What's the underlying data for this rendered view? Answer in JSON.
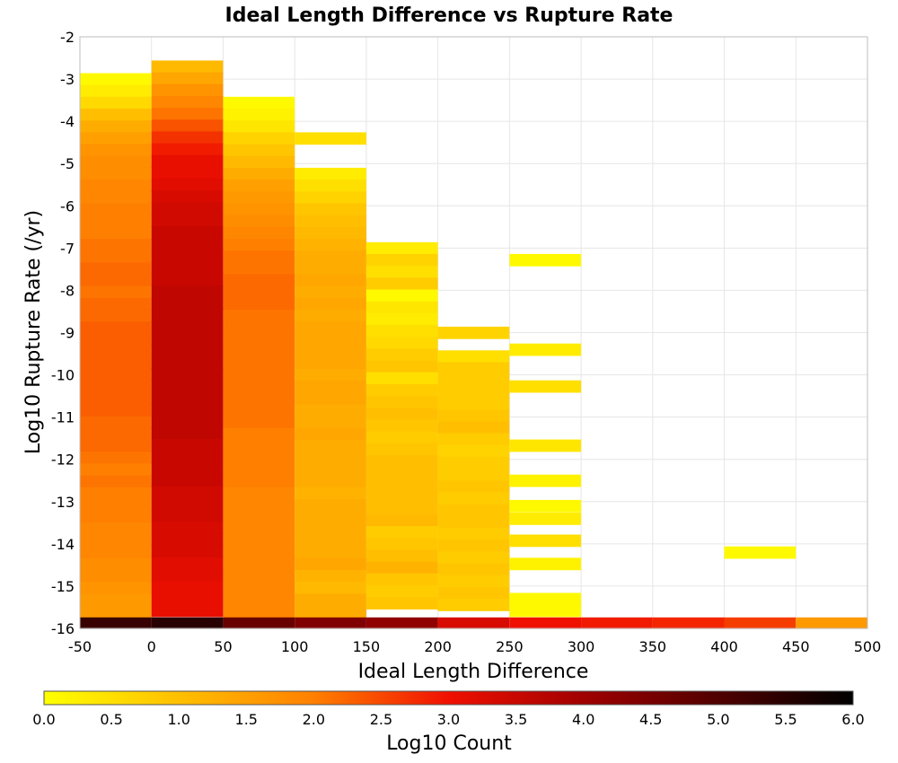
{
  "chart_data": {
    "type": "heatmap",
    "title": "Ideal Length Difference vs Rupture Rate",
    "xlabel": "Ideal Length Difference",
    "ylabel": "Log10 Rupture Rate (/yr)",
    "xlim": [
      -50,
      500
    ],
    "ylim": [
      -16,
      -2
    ],
    "x_ticks": [
      "-50",
      "0",
      "50",
      "100",
      "150",
      "200",
      "250",
      "300",
      "350",
      "400",
      "450",
      "500"
    ],
    "y_ticks": [
      "-2",
      "-3",
      "-4",
      "-5",
      "-6",
      "-7",
      "-8",
      "-9",
      "-10",
      "-11",
      "-12",
      "-13",
      "-14",
      "-15",
      "-16"
    ],
    "grid": true,
    "x_bin_width": 50,
    "y_bin_height": 0.28,
    "colorbar": {
      "label": "Log10 Count",
      "range": [
        0,
        6
      ],
      "ticks": [
        "0.0",
        "0.5",
        "1.0",
        "1.5",
        "2.0",
        "2.5",
        "3.0",
        "3.5",
        "4.0",
        "4.5",
        "5.0",
        "5.5",
        "6.0"
      ],
      "colormap": "hot (reversed: 0 = yellow, 6 = black)",
      "position": "bottom"
    },
    "columns": [
      {
        "x_start": -50,
        "cells": [
          {
            "y": -3.0,
            "v": 0.1
          },
          {
            "y": -3.28,
            "v": 0.3
          },
          {
            "y": -3.56,
            "v": 0.6
          },
          {
            "y": -3.84,
            "v": 1.0
          },
          {
            "y": -4.12,
            "v": 1.3
          },
          {
            "y": -4.4,
            "v": 1.5
          },
          {
            "y": -4.68,
            "v": 1.7
          },
          {
            "y": -4.96,
            "v": 1.8
          },
          {
            "y": -5.24,
            "v": 1.8
          },
          {
            "y": -5.52,
            "v": 1.9
          },
          {
            "y": -5.8,
            "v": 1.9
          },
          {
            "y": -6.08,
            "v": 2.0
          },
          {
            "y": -6.36,
            "v": 2.0
          },
          {
            "y": -6.64,
            "v": 2.0
          },
          {
            "y": -6.92,
            "v": 2.1
          },
          {
            "y": -7.2,
            "v": 2.1
          },
          {
            "y": -7.48,
            "v": 2.2
          },
          {
            "y": -7.76,
            "v": 2.2
          },
          {
            "y": -8.04,
            "v": 2.1
          },
          {
            "y": -8.32,
            "v": 2.2
          },
          {
            "y": -8.6,
            "v": 2.2
          },
          {
            "y": -8.88,
            "v": 2.3
          },
          {
            "y": -9.16,
            "v": 2.3
          },
          {
            "y": -9.44,
            "v": 2.3
          },
          {
            "y": -9.72,
            "v": 2.3
          },
          {
            "y": -10.0,
            "v": 2.3
          },
          {
            "y": -10.28,
            "v": 2.3
          },
          {
            "y": -10.56,
            "v": 2.3
          },
          {
            "y": -10.84,
            "v": 2.3
          },
          {
            "y": -11.12,
            "v": 2.2
          },
          {
            "y": -11.4,
            "v": 2.2
          },
          {
            "y": -11.68,
            "v": 2.2
          },
          {
            "y": -11.96,
            "v": 2.1
          },
          {
            "y": -12.24,
            "v": 2.0
          },
          {
            "y": -12.52,
            "v": 2.1
          },
          {
            "y": -12.8,
            "v": 2.0
          },
          {
            "y": -13.08,
            "v": 2.0
          },
          {
            "y": -13.36,
            "v": 2.0
          },
          {
            "y": -13.64,
            "v": 1.9
          },
          {
            "y": -13.92,
            "v": 1.9
          },
          {
            "y": -14.2,
            "v": 1.9
          },
          {
            "y": -14.48,
            "v": 1.8
          },
          {
            "y": -14.76,
            "v": 1.8
          },
          {
            "y": -15.04,
            "v": 1.7
          },
          {
            "y": -15.32,
            "v": 1.6
          },
          {
            "y": -15.6,
            "v": 1.6
          },
          {
            "y": -15.88,
            "v": 5.3
          }
        ]
      },
      {
        "x_start": 0,
        "cells": [
          {
            "y": -2.7,
            "v": 1.1
          },
          {
            "y": -2.98,
            "v": 1.4
          },
          {
            "y": -3.26,
            "v": 1.7
          },
          {
            "y": -3.54,
            "v": 1.9
          },
          {
            "y": -3.82,
            "v": 2.1
          },
          {
            "y": -4.1,
            "v": 2.4
          },
          {
            "y": -4.38,
            "v": 2.7
          },
          {
            "y": -4.66,
            "v": 2.9
          },
          {
            "y": -4.94,
            "v": 3.1
          },
          {
            "y": -5.22,
            "v": 3.1
          },
          {
            "y": -5.5,
            "v": 3.2
          },
          {
            "y": -5.78,
            "v": 3.3
          },
          {
            "y": -6.06,
            "v": 3.4
          },
          {
            "y": -6.34,
            "v": 3.4
          },
          {
            "y": -6.62,
            "v": 3.5
          },
          {
            "y": -6.9,
            "v": 3.5
          },
          {
            "y": -7.18,
            "v": 3.5
          },
          {
            "y": -7.46,
            "v": 3.5
          },
          {
            "y": -7.74,
            "v": 3.5
          },
          {
            "y": -8.02,
            "v": 3.6
          },
          {
            "y": -8.3,
            "v": 3.6
          },
          {
            "y": -8.58,
            "v": 3.6
          },
          {
            "y": -8.86,
            "v": 3.6
          },
          {
            "y": -9.14,
            "v": 3.6
          },
          {
            "y": -9.42,
            "v": 3.6
          },
          {
            "y": -9.7,
            "v": 3.6
          },
          {
            "y": -9.98,
            "v": 3.6
          },
          {
            "y": -10.26,
            "v": 3.6
          },
          {
            "y": -10.54,
            "v": 3.6
          },
          {
            "y": -10.82,
            "v": 3.6
          },
          {
            "y": -11.1,
            "v": 3.6
          },
          {
            "y": -11.38,
            "v": 3.6
          },
          {
            "y": -11.66,
            "v": 3.5
          },
          {
            "y": -11.94,
            "v": 3.5
          },
          {
            "y": -12.22,
            "v": 3.5
          },
          {
            "y": -12.5,
            "v": 3.5
          },
          {
            "y": -12.78,
            "v": 3.4
          },
          {
            "y": -13.06,
            "v": 3.4
          },
          {
            "y": -13.34,
            "v": 3.4
          },
          {
            "y": -13.62,
            "v": 3.3
          },
          {
            "y": -13.9,
            "v": 3.3
          },
          {
            "y": -14.18,
            "v": 3.3
          },
          {
            "y": -14.46,
            "v": 3.2
          },
          {
            "y": -14.74,
            "v": 3.2
          },
          {
            "y": -15.02,
            "v": 3.1
          },
          {
            "y": -15.3,
            "v": 3.1
          },
          {
            "y": -15.58,
            "v": 3.1
          },
          {
            "y": -15.88,
            "v": 5.5
          }
        ]
      },
      {
        "x_start": 50,
        "cells": [
          {
            "y": -3.56,
            "v": 0.1
          },
          {
            "y": -3.84,
            "v": 0.2
          },
          {
            "y": -4.12,
            "v": 0.4
          },
          {
            "y": -4.4,
            "v": 0.7
          },
          {
            "y": -4.68,
            "v": 0.9
          },
          {
            "y": -4.96,
            "v": 1.1
          },
          {
            "y": -5.24,
            "v": 1.3
          },
          {
            "y": -5.52,
            "v": 1.5
          },
          {
            "y": -5.8,
            "v": 1.6
          },
          {
            "y": -6.08,
            "v": 1.7
          },
          {
            "y": -6.36,
            "v": 1.8
          },
          {
            "y": -6.64,
            "v": 1.9
          },
          {
            "y": -6.92,
            "v": 2.0
          },
          {
            "y": -7.2,
            "v": 2.1
          },
          {
            "y": -7.48,
            "v": 2.1
          },
          {
            "y": -7.76,
            "v": 2.2
          },
          {
            "y": -8.04,
            "v": 2.2
          },
          {
            "y": -8.32,
            "v": 2.2
          },
          {
            "y": -8.6,
            "v": 2.1
          },
          {
            "y": -8.88,
            "v": 2.1
          },
          {
            "y": -9.16,
            "v": 2.1
          },
          {
            "y": -9.44,
            "v": 2.1
          },
          {
            "y": -9.72,
            "v": 2.1
          },
          {
            "y": -10.0,
            "v": 2.1
          },
          {
            "y": -10.28,
            "v": 2.1
          },
          {
            "y": -10.56,
            "v": 2.1
          },
          {
            "y": -10.84,
            "v": 2.1
          },
          {
            "y": -11.12,
            "v": 2.1
          },
          {
            "y": -11.4,
            "v": 2.0
          },
          {
            "y": -11.68,
            "v": 2.0
          },
          {
            "y": -11.96,
            "v": 2.0
          },
          {
            "y": -12.24,
            "v": 2.0
          },
          {
            "y": -12.52,
            "v": 2.0
          },
          {
            "y": -12.8,
            "v": 1.9
          },
          {
            "y": -13.08,
            "v": 1.9
          },
          {
            "y": -13.36,
            "v": 1.9
          },
          {
            "y": -13.64,
            "v": 1.9
          },
          {
            "y": -13.92,
            "v": 1.9
          },
          {
            "y": -14.2,
            "v": 1.9
          },
          {
            "y": -14.48,
            "v": 1.9
          },
          {
            "y": -14.76,
            "v": 1.9
          },
          {
            "y": -15.04,
            "v": 1.9
          },
          {
            "y": -15.32,
            "v": 1.9
          },
          {
            "y": -15.6,
            "v": 1.9
          },
          {
            "y": -15.88,
            "v": 4.7
          }
        ]
      },
      {
        "x_start": 100,
        "cells": [
          {
            "y": -4.4,
            "v": 0.5
          },
          {
            "y": -5.24,
            "v": 0.3
          },
          {
            "y": -5.52,
            "v": 0.5
          },
          {
            "y": -5.8,
            "v": 0.7
          },
          {
            "y": -6.08,
            "v": 0.9
          },
          {
            "y": -6.36,
            "v": 1.0
          },
          {
            "y": -6.64,
            "v": 1.1
          },
          {
            "y": -6.92,
            "v": 1.2
          },
          {
            "y": -7.2,
            "v": 1.3
          },
          {
            "y": -7.48,
            "v": 1.3
          },
          {
            "y": -7.76,
            "v": 1.4
          },
          {
            "y": -8.04,
            "v": 1.3
          },
          {
            "y": -8.32,
            "v": 1.4
          },
          {
            "y": -8.6,
            "v": 1.3
          },
          {
            "y": -8.88,
            "v": 1.4
          },
          {
            "y": -9.16,
            "v": 1.4
          },
          {
            "y": -9.44,
            "v": 1.4
          },
          {
            "y": -9.72,
            "v": 1.4
          },
          {
            "y": -10.0,
            "v": 1.3
          },
          {
            "y": -10.28,
            "v": 1.4
          },
          {
            "y": -10.56,
            "v": 1.4
          },
          {
            "y": -10.84,
            "v": 1.3
          },
          {
            "y": -11.12,
            "v": 1.3
          },
          {
            "y": -11.4,
            "v": 1.4
          },
          {
            "y": -11.68,
            "v": 1.3
          },
          {
            "y": -11.96,
            "v": 1.3
          },
          {
            "y": -12.24,
            "v": 1.3
          },
          {
            "y": -12.52,
            "v": 1.3
          },
          {
            "y": -12.8,
            "v": 1.2
          },
          {
            "y": -13.08,
            "v": 1.3
          },
          {
            "y": -13.36,
            "v": 1.3
          },
          {
            "y": -13.64,
            "v": 1.3
          },
          {
            "y": -13.92,
            "v": 1.3
          },
          {
            "y": -14.2,
            "v": 1.3
          },
          {
            "y": -14.48,
            "v": 1.4
          },
          {
            "y": -14.76,
            "v": 1.2
          },
          {
            "y": -15.04,
            "v": 1.1
          },
          {
            "y": -15.32,
            "v": 1.3
          },
          {
            "y": -15.6,
            "v": 1.3
          },
          {
            "y": -15.88,
            "v": 4.4
          }
        ]
      },
      {
        "x_start": 150,
        "cells": [
          {
            "y": -7.0,
            "v": 0.3
          },
          {
            "y": -7.28,
            "v": 0.7
          },
          {
            "y": -7.56,
            "v": 0.5
          },
          {
            "y": -7.84,
            "v": 0.8
          },
          {
            "y": -8.12,
            "v": 0.1
          },
          {
            "y": -8.4,
            "v": 0.4
          },
          {
            "y": -8.68,
            "v": 0.3
          },
          {
            "y": -8.96,
            "v": 0.5
          },
          {
            "y": -9.24,
            "v": 0.6
          },
          {
            "y": -9.52,
            "v": 0.8
          },
          {
            "y": -9.8,
            "v": 0.9
          },
          {
            "y": -10.08,
            "v": 0.5
          },
          {
            "y": -10.36,
            "v": 0.8
          },
          {
            "y": -10.64,
            "v": 0.9
          },
          {
            "y": -10.92,
            "v": 1.0
          },
          {
            "y": -11.2,
            "v": 0.9
          },
          {
            "y": -11.48,
            "v": 0.8
          },
          {
            "y": -11.76,
            "v": 0.9
          },
          {
            "y": -12.04,
            "v": 1.0
          },
          {
            "y": -12.32,
            "v": 1.0
          },
          {
            "y": -12.6,
            "v": 1.0
          },
          {
            "y": -12.88,
            "v": 1.0
          },
          {
            "y": -13.16,
            "v": 1.0
          },
          {
            "y": -13.44,
            "v": 1.1
          },
          {
            "y": -13.72,
            "v": 0.8
          },
          {
            "y": -14.0,
            "v": 0.9
          },
          {
            "y": -14.28,
            "v": 1.0
          },
          {
            "y": -14.56,
            "v": 1.2
          },
          {
            "y": -14.84,
            "v": 0.9
          },
          {
            "y": -15.12,
            "v": 0.8
          },
          {
            "y": -15.4,
            "v": 0.9
          },
          {
            "y": -15.88,
            "v": 4.2
          }
        ]
      },
      {
        "x_start": 200,
        "cells": [
          {
            "y": -9.0,
            "v": 0.7
          },
          {
            "y": -9.56,
            "v": 0.5
          },
          {
            "y": -9.84,
            "v": 0.8
          },
          {
            "y": -10.12,
            "v": 0.8
          },
          {
            "y": -10.4,
            "v": 0.8
          },
          {
            "y": -10.68,
            "v": 0.8
          },
          {
            "y": -10.96,
            "v": 0.9
          },
          {
            "y": -11.24,
            "v": 1.0
          },
          {
            "y": -11.52,
            "v": 0.8
          },
          {
            "y": -11.8,
            "v": 0.7
          },
          {
            "y": -12.08,
            "v": 0.8
          },
          {
            "y": -12.36,
            "v": 0.8
          },
          {
            "y": -12.64,
            "v": 0.9
          },
          {
            "y": -12.92,
            "v": 0.8
          },
          {
            "y": -13.2,
            "v": 0.9
          },
          {
            "y": -13.48,
            "v": 0.9
          },
          {
            "y": -13.76,
            "v": 0.8
          },
          {
            "y": -14.04,
            "v": 0.9
          },
          {
            "y": -14.32,
            "v": 0.8
          },
          {
            "y": -14.6,
            "v": 0.9
          },
          {
            "y": -14.88,
            "v": 0.8
          },
          {
            "y": -15.16,
            "v": 0.9
          },
          {
            "y": -15.44,
            "v": 0.8
          },
          {
            "y": -15.88,
            "v": 3.3
          }
        ]
      },
      {
        "x_start": 250,
        "cells": [
          {
            "y": -7.28,
            "v": 0.1
          },
          {
            "y": -9.4,
            "v": 0.3
          },
          {
            "y": -10.27,
            "v": 0.5
          },
          {
            "y": -11.67,
            "v": 0.4
          },
          {
            "y": -12.5,
            "v": 0.2
          },
          {
            "y": -13.1,
            "v": 0.1
          },
          {
            "y": -13.4,
            "v": 0.3
          },
          {
            "y": -13.92,
            "v": 0.5
          },
          {
            "y": -14.47,
            "v": 0.2
          },
          {
            "y": -15.3,
            "v": 0.1
          },
          {
            "y": -15.58,
            "v": 0.1
          },
          {
            "y": -15.88,
            "v": 3.0
          }
        ]
      },
      {
        "x_start": 300,
        "cells": [
          {
            "y": -15.88,
            "v": 2.9
          }
        ]
      },
      {
        "x_start": 350,
        "cells": [
          {
            "y": -15.88,
            "v": 2.8
          }
        ]
      },
      {
        "x_start": 400,
        "cells": [
          {
            "y": -14.2,
            "v": 0.1
          },
          {
            "y": -15.88,
            "v": 2.6
          }
        ]
      },
      {
        "x_start": 450,
        "cells": [
          {
            "y": -15.88,
            "v": 1.6
          }
        ]
      }
    ]
  }
}
